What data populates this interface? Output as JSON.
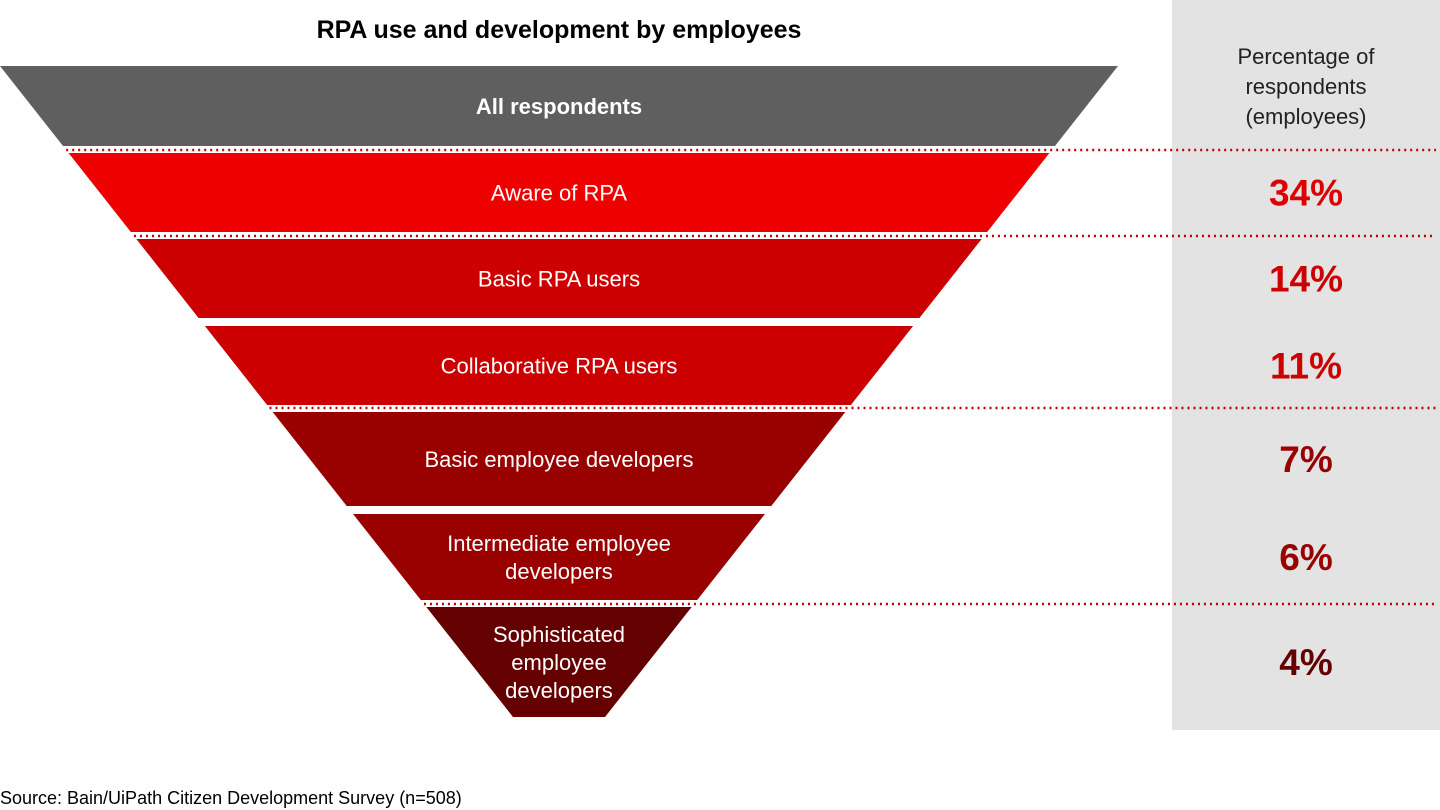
{
  "chart_data": {
    "type": "funnel",
    "title": "RPA use and development by employees",
    "column_header": "Percentage of respondents (employees)",
    "column_header_lines": [
      "Percentage of",
      "respondents",
      "(employees)"
    ],
    "source": "Source: Bain/UiPath Citizen Development Survey (n=508)",
    "unit": "%",
    "stages": [
      {
        "lines": [
          "All respondents"
        ],
        "value": null,
        "value_label": "",
        "color": "#5f5f5f"
      },
      {
        "lines": [
          "Aware of RPA"
        ],
        "value": 34,
        "value_label": "34%",
        "color": "#ee0000",
        "value_color": "#dd0000"
      },
      {
        "lines": [
          "Basic RPA users"
        ],
        "value": 14,
        "value_label": "14%",
        "color": "#cc0000",
        "value_color": "#cc0000"
      },
      {
        "lines": [
          "Collaborative RPA users"
        ],
        "value": 11,
        "value_label": "11%",
        "color": "#cc0000",
        "value_color": "#cc0000"
      },
      {
        "lines": [
          "Basic employee developers"
        ],
        "value": 7,
        "value_label": "7%",
        "color": "#990000",
        "value_color": "#990000"
      },
      {
        "lines": [
          "Intermediate employee",
          "developers"
        ],
        "value": 6,
        "value_label": "6%",
        "color": "#990000",
        "value_color": "#990000"
      },
      {
        "lines": [
          "Sophisticated",
          "employee",
          "developers"
        ],
        "value": 4,
        "value_label": "4%",
        "color": "#650000",
        "value_color": "#650000"
      }
    ],
    "colors": {
      "panel": "#e3e3e3",
      "divider": "#c00000"
    }
  }
}
